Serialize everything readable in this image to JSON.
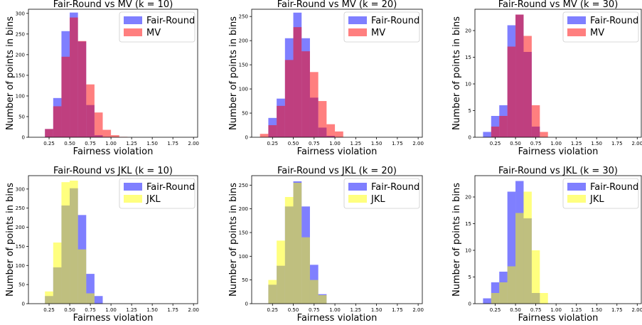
{
  "chart_data": [
    {
      "type": "bar",
      "title": "Fair-Round vs MV (k = 10)",
      "xlabel": "Fairness violation",
      "ylabel": "Number of points in bins",
      "xlim": [
        0.0,
        2.05
      ],
      "ylim": [
        0,
        310
      ],
      "xticks": [
        "0.25",
        "0.50",
        "0.75",
        "1.00",
        "1.25",
        "1.50",
        "1.75",
        "2.00"
      ],
      "yticks": [
        "0",
        "50",
        "100",
        "150",
        "200",
        "250",
        "300"
      ],
      "bin_width": 0.1,
      "legend_position": "top-right",
      "series": [
        {
          "name": "Fair-Round",
          "color": "#0000ff",
          "bins": [
            0.2,
            0.3,
            0.4,
            0.5,
            0.6,
            0.7,
            0.8,
            0.9
          ],
          "values": [
            20,
            95,
            257,
            302,
            232,
            78,
            5,
            1
          ]
        },
        {
          "name": "MV",
          "color": "#ff0000",
          "bins": [
            0.2,
            0.3,
            0.4,
            0.5,
            0.6,
            0.7,
            0.8,
            0.9,
            1.0,
            1.1
          ],
          "values": [
            20,
            75,
            195,
            290,
            233,
            128,
            60,
            18,
            5,
            1
          ]
        }
      ]
    },
    {
      "type": "bar",
      "title": "Fair-Round vs MV (k = 20)",
      "xlabel": "Fairness violation",
      "ylabel": "Number of points in bins",
      "xlim": [
        0.0,
        2.05
      ],
      "ylim": [
        0,
        265
      ],
      "xticks": [
        "0.25",
        "0.50",
        "0.75",
        "1.00",
        "1.25",
        "1.50",
        "1.75",
        "2.00"
      ],
      "yticks": [
        "0",
        "50",
        "100",
        "150",
        "200",
        "250"
      ],
      "bin_width": 0.1,
      "legend_position": "top-right",
      "series": [
        {
          "name": "Fair-Round",
          "color": "#0000ff",
          "bins": [
            0.2,
            0.3,
            0.4,
            0.5,
            0.6,
            0.7,
            0.8,
            0.9
          ],
          "values": [
            40,
            80,
            205,
            258,
            205,
            82,
            20,
            3
          ]
        },
        {
          "name": "MV",
          "color": "#ff0000",
          "bins": [
            0.1,
            0.2,
            0.3,
            0.4,
            0.5,
            0.6,
            0.7,
            0.8,
            0.9,
            1.0
          ],
          "values": [
            7,
            25,
            65,
            160,
            228,
            178,
            135,
            75,
            27,
            12
          ]
        }
      ]
    },
    {
      "type": "bar",
      "title": "Fair-Round vs MV (k = 30)",
      "xlabel": "Fairness violation",
      "ylabel": "Number of points in bins",
      "xlim": [
        0.0,
        2.05
      ],
      "ylim": [
        0,
        24
      ],
      "xticks": [
        "0.25",
        "0.50",
        "0.75",
        "1.00",
        "1.25",
        "1.50",
        "1.75",
        "2.00"
      ],
      "yticks": [
        "0",
        "5",
        "10",
        "15",
        "20"
      ],
      "bin_width": 0.1,
      "legend_position": "top-right",
      "series": [
        {
          "name": "Fair-Round",
          "color": "#0000ff",
          "bins": [
            0.1,
            0.2,
            0.3,
            0.4,
            0.5,
            0.6,
            0.7
          ],
          "values": [
            1,
            4,
            6,
            21,
            23,
            16,
            2
          ]
        },
        {
          "name": "MV",
          "color": "#ff0000",
          "bins": [
            0.2,
            0.3,
            0.4,
            0.5,
            0.6,
            0.7,
            0.8
          ],
          "values": [
            2,
            4,
            17,
            23,
            19,
            6,
            1
          ]
        }
      ]
    },
    {
      "type": "bar",
      "title": "Fair-Round vs JKL (k = 10)",
      "xlabel": "Fairness violation",
      "ylabel": "Number of points in bins",
      "xlim": [
        0.0,
        2.05
      ],
      "ylim": [
        0,
        335
      ],
      "xticks": [
        "0.25",
        "0.50",
        "0.75",
        "1.00",
        "1.25",
        "1.50",
        "1.75",
        "2.00"
      ],
      "yticks": [
        "0",
        "50",
        "100",
        "150",
        "200",
        "250",
        "300"
      ],
      "bin_width": 0.1,
      "legend_position": "top-right",
      "series": [
        {
          "name": "Fair-Round",
          "color": "#0000ff",
          "bins": [
            0.2,
            0.3,
            0.4,
            0.5,
            0.6,
            0.7,
            0.8
          ],
          "values": [
            20,
            95,
            257,
            302,
            232,
            78,
            20
          ]
        },
        {
          "name": "JKL",
          "color": "#ffff00",
          "bins": [
            0.2,
            0.3,
            0.4,
            0.5,
            0.6,
            0.7
          ],
          "values": [
            32,
            160,
            318,
            322,
            142,
            27
          ]
        }
      ]
    },
    {
      "type": "bar",
      "title": "Fair-Round vs JKL (k = 20)",
      "xlabel": "Fairness violation",
      "ylabel": "Number of points in bins",
      "xlim": [
        0.0,
        2.05
      ],
      "ylim": [
        0,
        270
      ],
      "xticks": [
        "0.25",
        "0.50",
        "0.75",
        "1.00",
        "1.25",
        "1.50",
        "1.75",
        "2.00"
      ],
      "yticks": [
        "0",
        "50",
        "100",
        "150",
        "200",
        "250"
      ],
      "bin_width": 0.1,
      "legend_position": "top-right",
      "series": [
        {
          "name": "Fair-Round",
          "color": "#0000ff",
          "bins": [
            0.2,
            0.3,
            0.4,
            0.5,
            0.6,
            0.7,
            0.8
          ],
          "values": [
            40,
            80,
            205,
            258,
            205,
            82,
            20
          ]
        },
        {
          "name": "JKL",
          "color": "#ffff00",
          "bins": [
            0.2,
            0.3,
            0.4,
            0.5,
            0.6,
            0.7,
            0.8
          ],
          "values": [
            50,
            133,
            225,
            255,
            140,
            50,
            18
          ]
        }
      ]
    },
    {
      "type": "bar",
      "title": "Fair-Round vs JKL (k = 30)",
      "xlabel": "Fairness violation",
      "ylabel": "Number of points in bins",
      "xlim": [
        0.0,
        2.05
      ],
      "ylim": [
        0,
        24
      ],
      "xticks": [
        "0.25",
        "0.50",
        "0.75",
        "1.00",
        "1.25",
        "1.50",
        "1.75",
        "2.00"
      ],
      "yticks": [
        "0",
        "5",
        "10",
        "15",
        "20"
      ],
      "bin_width": 0.1,
      "legend_position": "top-right",
      "series": [
        {
          "name": "Fair-Round",
          "color": "#0000ff",
          "bins": [
            0.1,
            0.2,
            0.3,
            0.4,
            0.5,
            0.6,
            0.7
          ],
          "values": [
            1,
            4,
            6,
            21,
            23,
            16,
            2
          ]
        },
        {
          "name": "JKL",
          "color": "#ffff00",
          "bins": [
            0.2,
            0.3,
            0.4,
            0.5,
            0.6,
            0.7,
            0.8
          ],
          "values": [
            2,
            4,
            7,
            17,
            21,
            10,
            2
          ]
        }
      ]
    }
  ]
}
